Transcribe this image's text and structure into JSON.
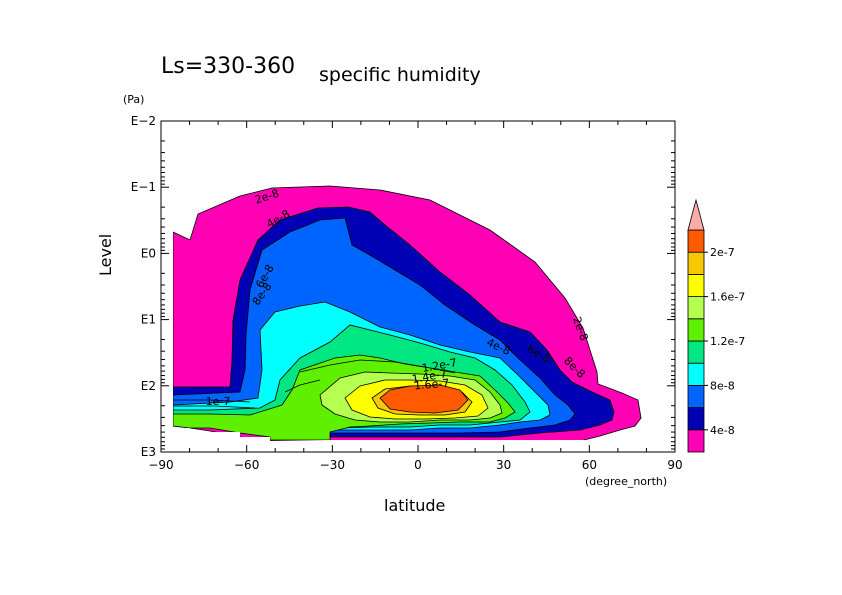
{
  "chart_data": {
    "type": "contour",
    "title": "Ls=330-360",
    "subtitle": "specific humidity",
    "xlabel": "latitude",
    "xunits": "(degree_north)",
    "ylabel": "Level",
    "yunits": "(Pa)",
    "x_range": [
      -90,
      90
    ],
    "x_ticks": [
      -90,
      -60,
      -30,
      0,
      30,
      60,
      90
    ],
    "x_tick_labels": [
      "−90",
      "−60",
      "−30",
      "0",
      "30",
      "60",
      "90"
    ],
    "y_scale": "log",
    "y_range": [
      0.01,
      1000
    ],
    "y_ticks": [
      0.01,
      0.1,
      1,
      10,
      100,
      1000
    ],
    "y_tick_labels": [
      "E−2",
      "E−1",
      "E0",
      "E1",
      "E2",
      "E3"
    ],
    "levels": [
      2e-08,
      4e-08,
      6e-08,
      8e-08,
      1e-07,
      1.2e-07,
      1.4e-07,
      1.6e-07,
      1.8e-07,
      2e-07,
      2.2e-07
    ],
    "colorbar": {
      "colors": [
        "#ff00b4",
        "#0000b4",
        "#0064ff",
        "#00ffff",
        "#00e680",
        "#5ef000",
        "#b4ff50",
        "#ffff00",
        "#f5c800",
        "#ff5a00",
        "#f06464",
        "#ffaaaa"
      ],
      "tick_labels": [
        "4e-8",
        "8e-8",
        "1.2e-7",
        "1.6e-7",
        "2e-7"
      ]
    },
    "contour_labels": [
      "2e-8",
      "4e-8",
      "6e-8",
      "8e-8",
      "1e-7",
      "1.2e-7",
      "1.4e-7",
      "1.6e-7",
      "2e-8",
      "4e-8",
      "6e-8",
      "8e-8"
    ],
    "max_region": {
      "lat": [
        -10,
        15
      ],
      "level_pa": [
        50,
        130
      ],
      "range": "2e-7 to 2.2e-7"
    }
  }
}
